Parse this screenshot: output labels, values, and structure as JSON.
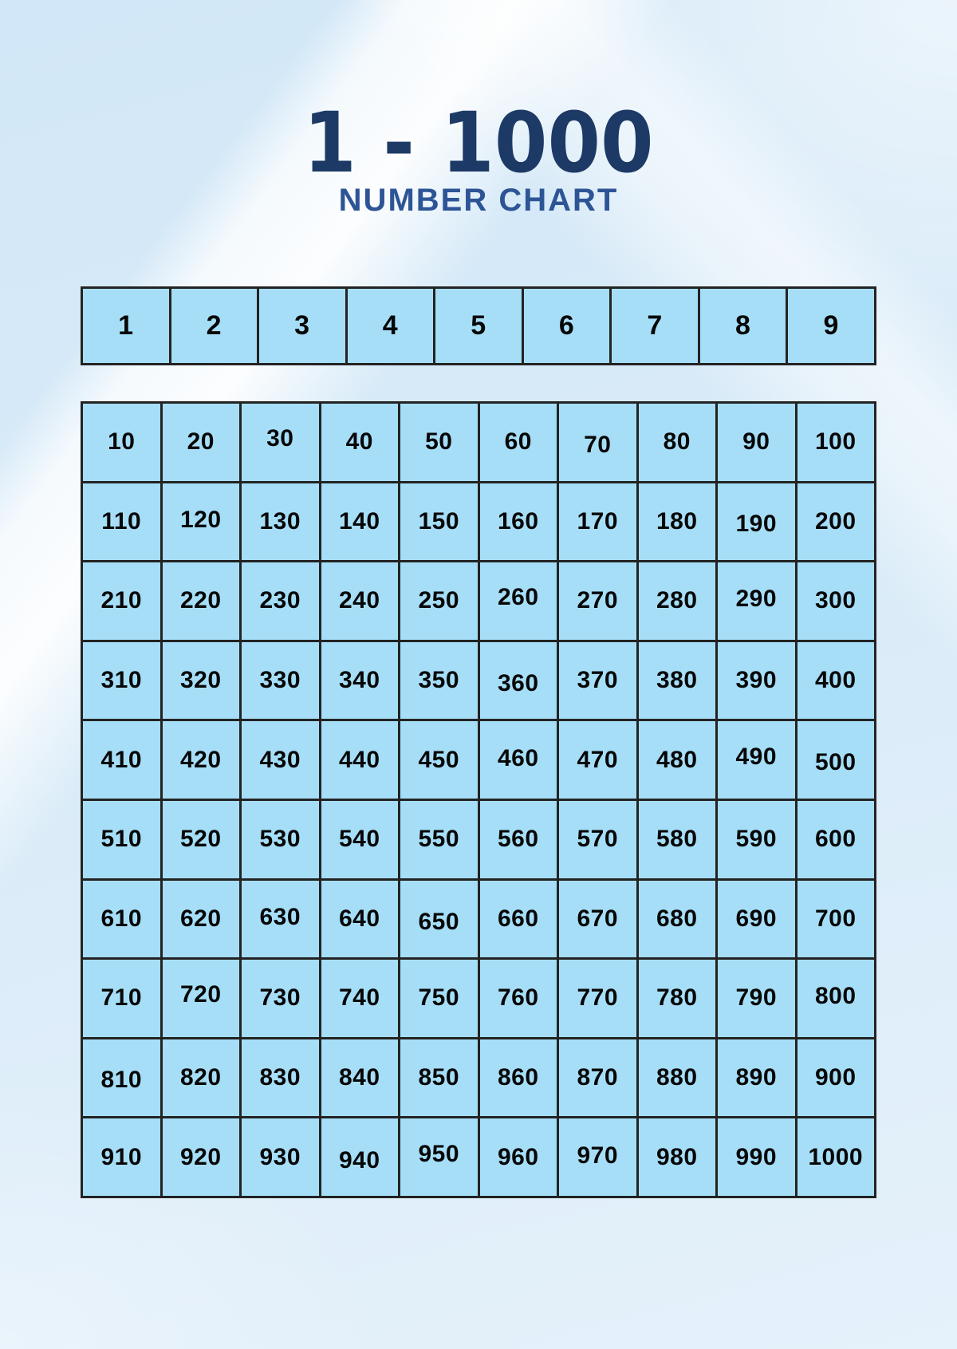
{
  "header": {
    "title": "1 - 1000",
    "subtitle": "NUMBER CHART"
  },
  "ones_row": {
    "cells": [
      "1",
      "2",
      "3",
      "4",
      "5",
      "6",
      "7",
      "8",
      "9"
    ]
  },
  "tens_grid": {
    "rows": [
      [
        "10",
        "20",
        "30",
        "40",
        "50",
        "60",
        "70",
        "80",
        "90",
        "100"
      ],
      [
        "110",
        "120",
        "130",
        "140",
        "150",
        "160",
        "170",
        "180",
        "190",
        "200"
      ],
      [
        "210",
        "220",
        "230",
        "240",
        "250",
        "260",
        "270",
        "280",
        "290",
        "300"
      ],
      [
        "310",
        "320",
        "330",
        "340",
        "350",
        "360",
        "370",
        "380",
        "390",
        "400"
      ],
      [
        "410",
        "420",
        "430",
        "440",
        "450",
        "460",
        "470",
        "480",
        "490",
        "500"
      ],
      [
        "510",
        "520",
        "530",
        "540",
        "550",
        "560",
        "570",
        "580",
        "590",
        "600"
      ],
      [
        "610",
        "620",
        "630",
        "640",
        "650",
        "660",
        "670",
        "680",
        "690",
        "700"
      ],
      [
        "710",
        "720",
        "730",
        "740",
        "750",
        "760",
        "770",
        "780",
        "790",
        "800"
      ],
      [
        "810",
        "820",
        "830",
        "840",
        "850",
        "860",
        "870",
        "880",
        "890",
        "900"
      ],
      [
        "910",
        "920",
        "930",
        "940",
        "950",
        "960",
        "970",
        "980",
        "990",
        "1000"
      ]
    ]
  },
  "colors": {
    "title": "#1d3a66",
    "subtitle": "#2d5596",
    "cell_fill": "#a6def8",
    "cell_border": "#232323",
    "number": "#070707",
    "background": "#d9ebf8"
  }
}
